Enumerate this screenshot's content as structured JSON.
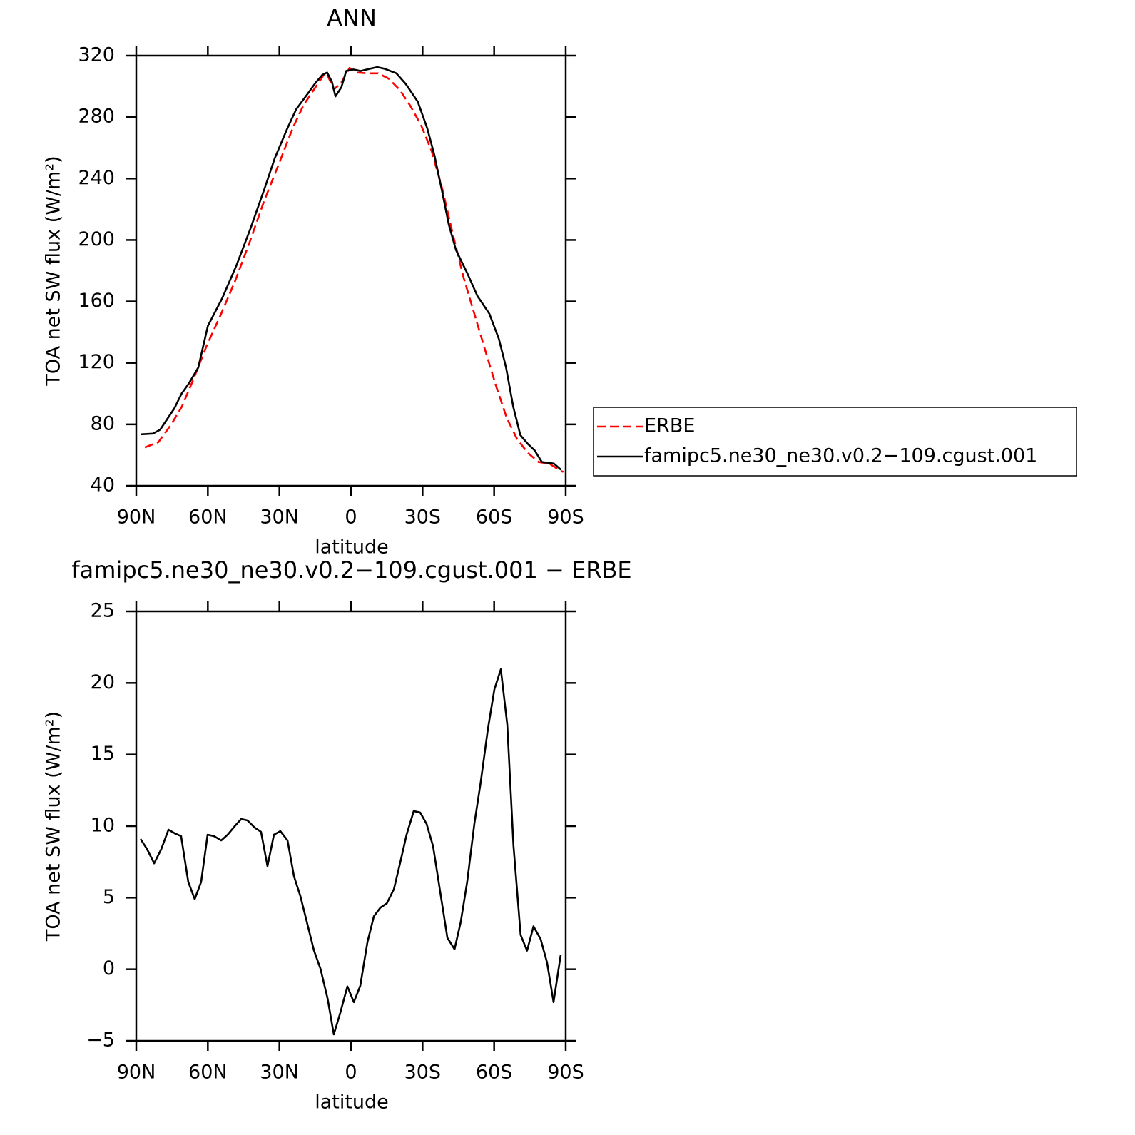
{
  "chart_data": [
    {
      "type": "line",
      "title": "ANN",
      "xlabel": "latitude",
      "ylabel": "TOA net SW flux (W/m²)",
      "xlim": [
        90,
        -90
      ],
      "xticks": [
        {
          "value": 90,
          "label": "90N"
        },
        {
          "value": 60,
          "label": "60N"
        },
        {
          "value": 30,
          "label": "30N"
        },
        0,
        {
          "value": -30,
          "label": "30S"
        },
        {
          "value": -60,
          "label": "60S"
        },
        {
          "value": -90,
          "label": "90S"
        }
      ],
      "ylim": [
        40,
        320
      ],
      "yticks": [
        40,
        80,
        120,
        160,
        200,
        240,
        280,
        320
      ],
      "legend": "right",
      "series": [
        {
          "name": "ERBE",
          "color": "#ff0000",
          "line_style": "dashed",
          "x": [
            86.4,
            80.7,
            75.3,
            70.9,
            66.4,
            60.4,
            54.4,
            48.4,
            42.5,
            36.5,
            30.5,
            24.5,
            20,
            15.5,
            11,
            9.6,
            7.2,
            4.2,
            0.6,
            -2.4,
            -6.9,
            -11.4,
            -15.8,
            -20.3,
            -24.8,
            -29.3,
            -33.8,
            -38.3,
            -42.8,
            -47.3,
            -51.7,
            -56.2,
            -60.7,
            -65.2,
            -69.6,
            -74.1,
            -78.6,
            -83.1,
            -87.6,
            -89
          ],
          "values": [
            65,
            68.5,
            80,
            91.5,
            108,
            131.5,
            152,
            174,
            198.5,
            225,
            248.5,
            272.5,
            287.5,
            298,
            308.5,
            306.5,
            298,
            302,
            312,
            309,
            308.5,
            308.5,
            305,
            298,
            287.5,
            275,
            258,
            233,
            203,
            175,
            152,
            128.5,
            105.5,
            84.5,
            70.5,
            61.5,
            55.5,
            54.5,
            50,
            49
          ]
        },
        {
          "name": "famipc5.ne30_ne30.v0.2−109.cgust.001",
          "color": "#000000",
          "line_style": "solid",
          "x": [
            88,
            83,
            80,
            74,
            71,
            68,
            64,
            60,
            54,
            48,
            42,
            36,
            32,
            27,
            23,
            18,
            15,
            12,
            10,
            8,
            6.5,
            4,
            2,
            -1,
            -4,
            -8,
            -11,
            -14,
            -19,
            -23,
            -28,
            -32,
            -35,
            -38,
            -41,
            -44,
            -49,
            -53,
            -58,
            -62,
            -65,
            -68,
            -71,
            -74,
            -77,
            -80,
            -85,
            -88
          ],
          "values": [
            73.5,
            74,
            76.5,
            90.5,
            100,
            106.5,
            117,
            144,
            162,
            183.5,
            208,
            234.5,
            253,
            271.5,
            285,
            295.5,
            302,
            307.5,
            309,
            303,
            293.5,
            299.5,
            310,
            311,
            310,
            311.5,
            312.5,
            311.5,
            308.5,
            301.5,
            290,
            272.5,
            255,
            233,
            210,
            193.5,
            177.5,
            163.5,
            152,
            135.5,
            117,
            91.5,
            73,
            67.5,
            63,
            55.5,
            54.5,
            50.5
          ]
        }
      ]
    },
    {
      "type": "line",
      "title": "famipc5.ne30_ne30.v0.2−109.cgust.001 − ERBE",
      "xlabel": "latitude",
      "ylabel": "TOA net SW flux (W/m²)",
      "xlim": [
        90,
        -90
      ],
      "xticks": [
        {
          "value": 90,
          "label": "90N"
        },
        {
          "value": 60,
          "label": "60N"
        },
        {
          "value": 30,
          "label": "30N"
        },
        0,
        {
          "value": -30,
          "label": "30S"
        },
        {
          "value": -60,
          "label": "60S"
        },
        {
          "value": -90,
          "label": "90S"
        }
      ],
      "ylim": [
        -5,
        25
      ],
      "yticks": [
        {
          "value": -5,
          "label": "−5"
        },
        0,
        5,
        10,
        15,
        20,
        25
      ],
      "series": [
        {
          "color": "#000000",
          "line_style": "solid",
          "x": [
            88.2,
            85.5,
            82.5,
            79.5,
            76.5,
            73.9,
            71.2,
            68.2,
            65.5,
            62.8,
            60.1,
            57.4,
            54.4,
            51.7,
            48.7,
            46.0,
            43.4,
            40.4,
            37.7,
            35.0,
            32.3,
            29.6,
            26.6,
            23.9,
            21.2,
            18.2,
            15.5,
            12.8,
            9.8,
            7.2,
            4.5,
            1.5,
            -1.2,
            -3.9,
            -6.9,
            -9.6,
            -12.3,
            -15.0,
            -18.0,
            -20.7,
            -23.3,
            -26.3,
            -29.0,
            -31.7,
            -34.4,
            -37.4,
            -40.4,
            -43.4,
            -46.0,
            -48.7,
            -51.7,
            -54.4,
            -57.4,
            -60.1,
            -62.8,
            -65.5,
            -68.1,
            -71.1,
            -73.8,
            -76.5,
            -79.5,
            -82.2,
            -84.9,
            -87.9
          ],
          "values": [
            9.1,
            8.4,
            7.4,
            8.4,
            9.75,
            9.5,
            9.3,
            6.1,
            4.9,
            6.1,
            9.4,
            9.3,
            9.0,
            9.4,
            10.0,
            10.5,
            10.4,
            9.9,
            9.6,
            7.2,
            9.4,
            9.65,
            9.0,
            6.5,
            5.1,
            3.1,
            1.3,
            0.04,
            -2.05,
            -4.55,
            -3.05,
            -1.2,
            -2.3,
            -1.15,
            1.9,
            3.7,
            4.3,
            4.6,
            5.6,
            7.5,
            9.4,
            11.05,
            10.95,
            10.15,
            8.6,
            5.4,
            2.2,
            1.4,
            3.3,
            6.1,
            10.15,
            13.1,
            16.8,
            19.55,
            20.95,
            17.1,
            8.65,
            2.4,
            1.3,
            3.0,
            2.1,
            0.45,
            -2.3,
            1.0
          ]
        }
      ]
    }
  ]
}
